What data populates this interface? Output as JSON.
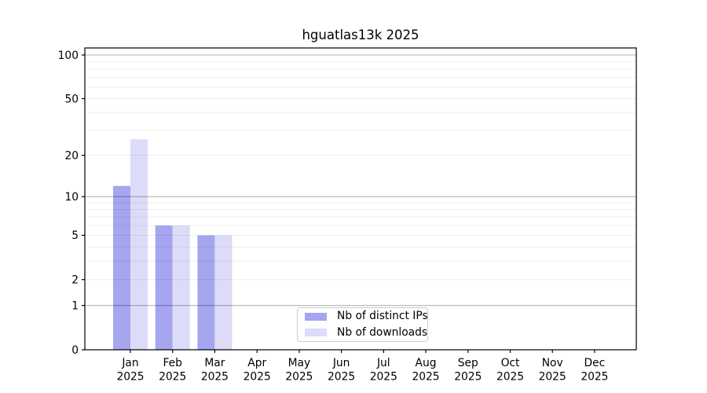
{
  "chart_data": {
    "type": "bar",
    "title": "hguatlas13k 2025",
    "year_label": "2025",
    "categories": [
      "Jan",
      "Feb",
      "Mar",
      "Apr",
      "May",
      "Jun",
      "Jul",
      "Aug",
      "Sep",
      "Oct",
      "Nov",
      "Dec"
    ],
    "series": [
      {
        "name": "Nb of distinct IPs",
        "color": "#a5a5f0",
        "values": [
          12,
          6,
          5,
          0,
          0,
          0,
          0,
          0,
          0,
          0,
          0,
          0
        ]
      },
      {
        "name": "Nb of downloads",
        "color": "#dcdcf8",
        "values": [
          26,
          6,
          5,
          0,
          0,
          0,
          0,
          0,
          0,
          0,
          0,
          0
        ]
      }
    ],
    "y_scale": "log10(1+v)",
    "ylim": [
      0,
      112
    ],
    "grid": true,
    "legend_position": "lower center",
    "y_ticks": [
      {
        "label": "100",
        "value": 100
      },
      {
        "label": "50",
        "value": 50
      },
      {
        "label": "20",
        "value": 20
      },
      {
        "label": "10",
        "value": 10
      },
      {
        "label": "5",
        "value": 5
      },
      {
        "label": "2",
        "value": 2
      },
      {
        "label": "1",
        "value": 1
      },
      {
        "label": "0",
        "value": 0
      }
    ],
    "major_grid_values": [
      1,
      10,
      100
    ],
    "minor_grid_values": [
      2,
      3,
      4,
      5,
      6,
      7,
      8,
      9,
      20,
      30,
      40,
      50,
      60,
      70,
      80,
      90
    ],
    "colors": {
      "spine": "#000000",
      "text": "#000000",
      "major_grid": "rgba(0,0,0,0.30)",
      "minor_grid": "rgba(0,0,0,0.07)",
      "legend_border": "#cccccc",
      "background": "#ffffff"
    }
  }
}
